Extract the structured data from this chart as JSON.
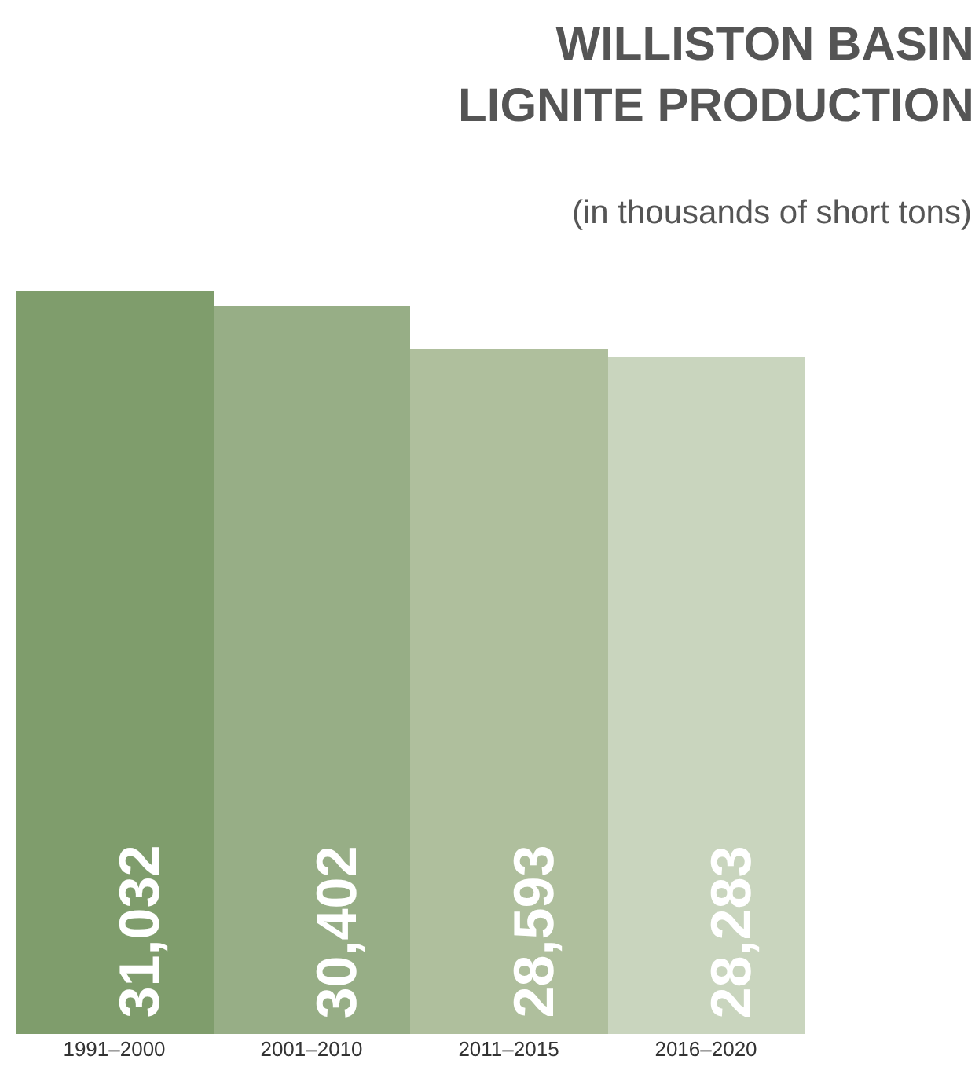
{
  "chart_data": {
    "type": "bar",
    "title": "WILLISTON BASIN\nLIGNITE PRODUCTION",
    "subtitle": "(in thousands of short tons)",
    "categories": [
      "1991–2000",
      "2001–2010",
      "2011–2015",
      "2016–2020"
    ],
    "values": [
      31032,
      30402,
      28593,
      28283
    ],
    "colors": [
      "#7f9d6c",
      "#97ae86",
      "#afbf9d",
      "#c9d5be"
    ],
    "value_labels": [
      "31,032",
      "30,402",
      "28,593",
      "28,283"
    ],
    "tick_labels": "x",
    "legend": false
  }
}
